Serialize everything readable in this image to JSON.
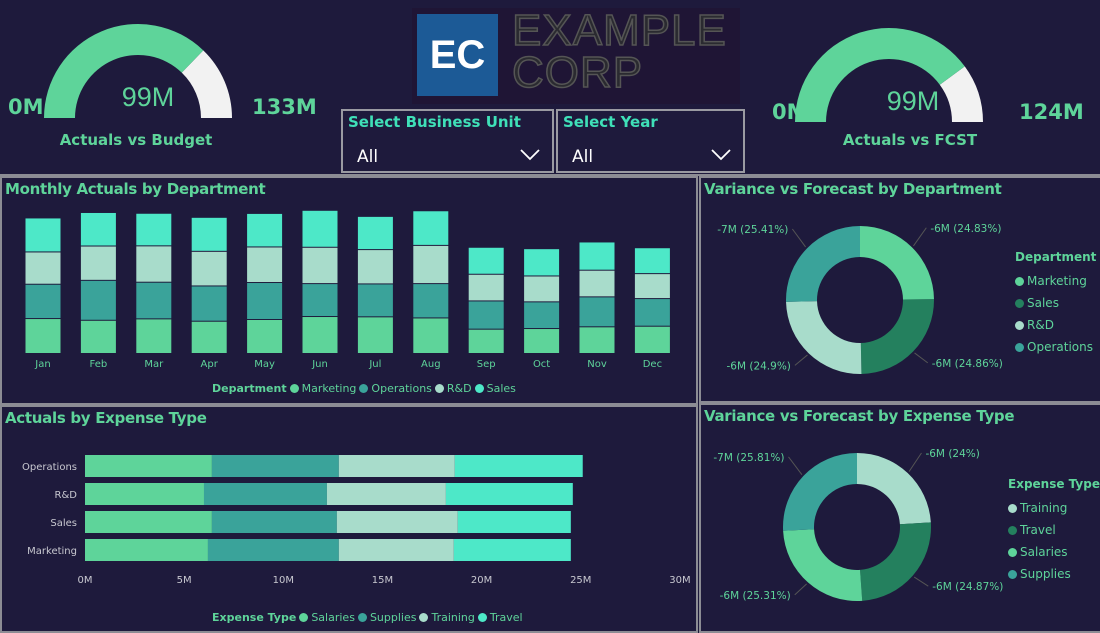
{
  "colors": {
    "background": "#1e1a3c",
    "accent": "#5ed49a",
    "marketing": "#5ed49a",
    "operations": "#3aa39a",
    "rd": "#a8dccb",
    "sales": "#4de8c8",
    "dark_green": "#24805e",
    "gauge_remaining": "#f2f2f2",
    "logo_blue": "#1c5a96"
  },
  "logo": {
    "badge": "EC",
    "line1": "EXAMPLE",
    "line2": "CORP"
  },
  "gauge_budget": {
    "min_label": "0M",
    "max_label": "133M",
    "value_label": "99M",
    "title": "Actuals vs Budget",
    "value": 99,
    "max": 133
  },
  "gauge_fcst": {
    "min_label": "0M",
    "max_label": "124M",
    "value_label": "99M",
    "title": "Actuals vs FCST",
    "value": 99,
    "max": 124
  },
  "slicer_unit": {
    "label": "Select Business Unit",
    "value": "All",
    "icon": "chevron-down-icon"
  },
  "slicer_year": {
    "label": "Select Year",
    "value": "All",
    "icon": "chevron-down-icon"
  },
  "chart_data": [
    {
      "type": "bar",
      "stacked": true,
      "title": "Monthly Actuals by Department",
      "legend_title": "Department",
      "legend_position": "bottom",
      "categories": [
        "Jan",
        "Feb",
        "Mar",
        "Apr",
        "May",
        "Jun",
        "Jul",
        "Aug",
        "Sep",
        "Oct",
        "Nov",
        "Dec"
      ],
      "series": [
        {
          "name": "Marketing",
          "values": [
            2.24,
            2.13,
            2.22,
            2.07,
            2.18,
            2.37,
            2.35,
            2.28,
            1.56,
            1.6,
            1.71,
            1.75
          ]
        },
        {
          "name": "Operations",
          "values": [
            2.2,
            2.56,
            2.35,
            2.26,
            2.37,
            2.11,
            2.11,
            2.2,
            1.81,
            1.71,
            1.92,
            1.77
          ]
        },
        {
          "name": "R&D",
          "values": [
            2.07,
            2.2,
            2.33,
            2.22,
            2.28,
            2.33,
            2.2,
            2.45,
            1.71,
            1.66,
            1.71,
            1.6
          ]
        },
        {
          "name": "Sales",
          "values": [
            2.18,
            2.15,
            2.09,
            2.18,
            2.15,
            2.37,
            2.13,
            2.22,
            1.73,
            1.75,
            1.81,
            1.66
          ]
        }
      ],
      "units": "M",
      "y_axis_visible": false
    },
    {
      "type": "bar",
      "orientation": "horizontal",
      "stacked": true,
      "title": "Actuals by Expense Type",
      "legend_title": "Expense Type",
      "legend_position": "bottom",
      "categories": [
        "Operations",
        "R&D",
        "Sales",
        "Marketing"
      ],
      "series": [
        {
          "name": "Salaries",
          "values": [
            6.4,
            6.0,
            6.4,
            6.2
          ]
        },
        {
          "name": "Supplies",
          "values": [
            6.4,
            6.2,
            6.3,
            6.6
          ]
        },
        {
          "name": "Training",
          "values": [
            5.85,
            6.0,
            6.1,
            5.8
          ]
        },
        {
          "name": "Travel",
          "values": [
            6.45,
            6.4,
            5.7,
            5.9
          ]
        }
      ],
      "xlim": [
        0,
        30
      ],
      "xticks": [
        "0M",
        "5M",
        "10M",
        "15M",
        "20M",
        "25M",
        "30M"
      ]
    },
    {
      "type": "pie",
      "donut": true,
      "title": "Variance vs Forecast by Department",
      "legend_title": "Department",
      "legend_position": "right",
      "slices": [
        {
          "name": "Marketing",
          "value": -6,
          "percent": 24.83,
          "label": "-6M (24.83%)"
        },
        {
          "name": "Sales",
          "value": -6,
          "percent": 24.86,
          "label": "-6M (24.86%)"
        },
        {
          "name": "R&D",
          "value": -6,
          "percent": 24.9,
          "label": "-6M (24.9%)"
        },
        {
          "name": "Operations",
          "value": -7,
          "percent": 25.41,
          "label": "-7M (25.41%)"
        }
      ]
    },
    {
      "type": "pie",
      "donut": true,
      "title": "Variance vs Forecast by Expense Type",
      "legend_title": "Expense Type",
      "legend_position": "right",
      "slices": [
        {
          "name": "Training",
          "value": -6,
          "percent": 24,
          "label": "-6M (24%)"
        },
        {
          "name": "Travel",
          "value": -6,
          "percent": 24.87,
          "label": "-6M (24.87%)"
        },
        {
          "name": "Salaries",
          "value": -6,
          "percent": 25.31,
          "label": "-6M (25.31%)"
        },
        {
          "name": "Supplies",
          "value": -7,
          "percent": 25.81,
          "label": "-7M (25.81%)"
        }
      ]
    }
  ]
}
